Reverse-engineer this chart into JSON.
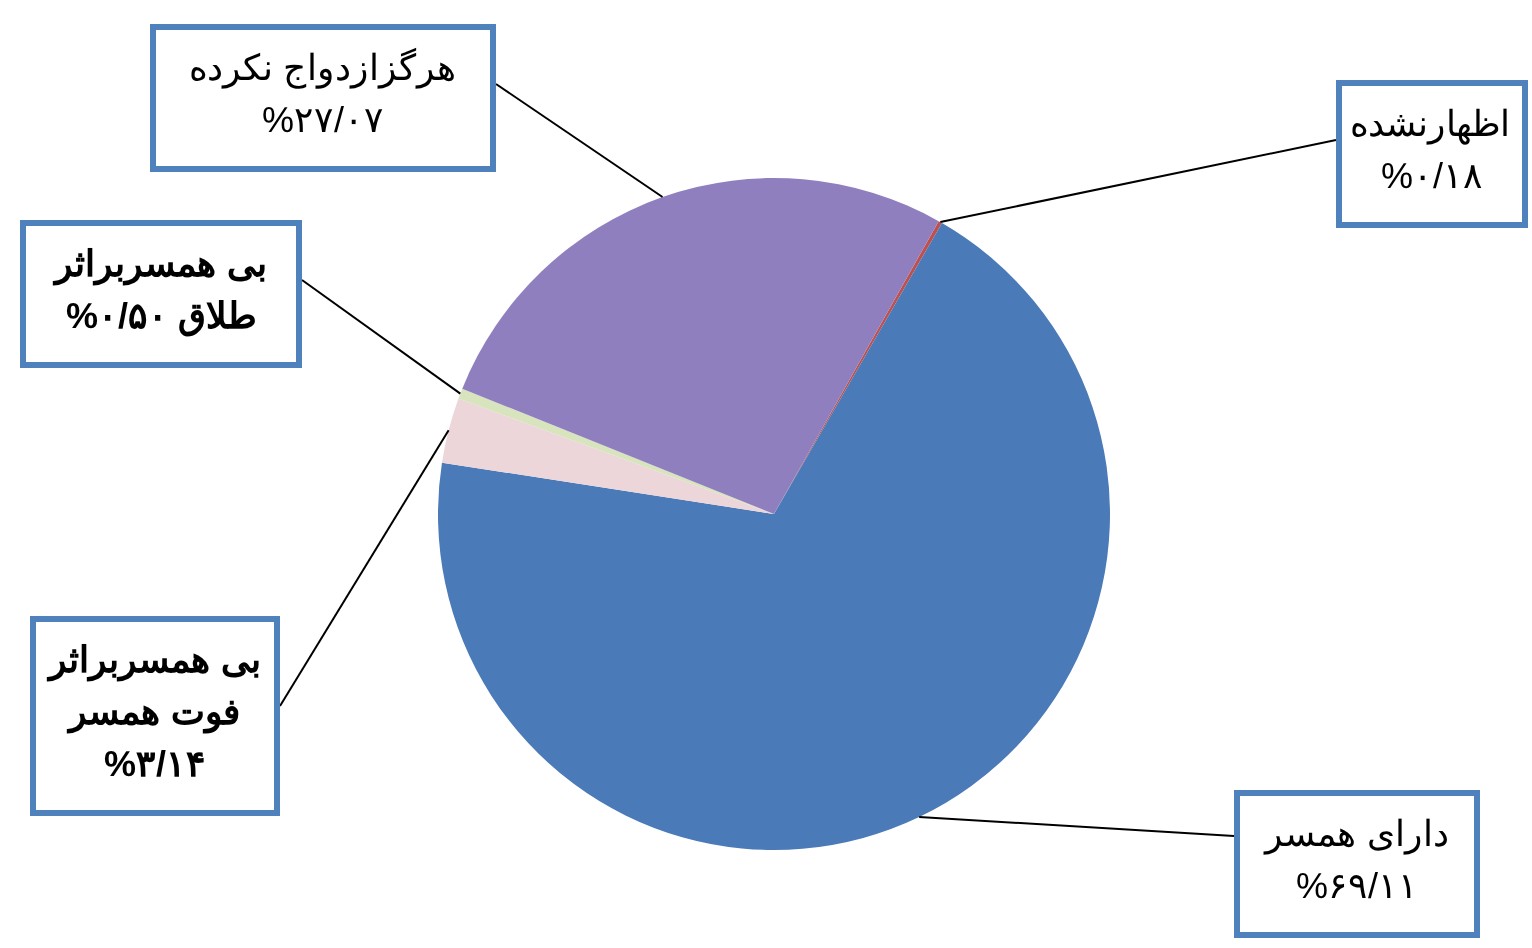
{
  "chart_data": {
    "type": "pie",
    "categories": [
      "اظهارنشده",
      "دارای همسر",
      "بی همسربراثر فوت همسر",
      "بی همسربراثر طلاق",
      "هرگزازدواج نکرده"
    ],
    "values": [
      0.18,
      69.11,
      3.14,
      0.5,
      27.07
    ],
    "colors": [
      "#c0504d",
      "#4a7ab8",
      "#ecd6da",
      "#d7e4bd",
      "#8f7fbf"
    ],
    "value_labels": [
      "%۰/۱۸",
      "%۶۹/۱۱",
      "%۳/۱۴",
      "%۰/۵۰",
      "%۲۷/۰۷"
    ]
  }
}
